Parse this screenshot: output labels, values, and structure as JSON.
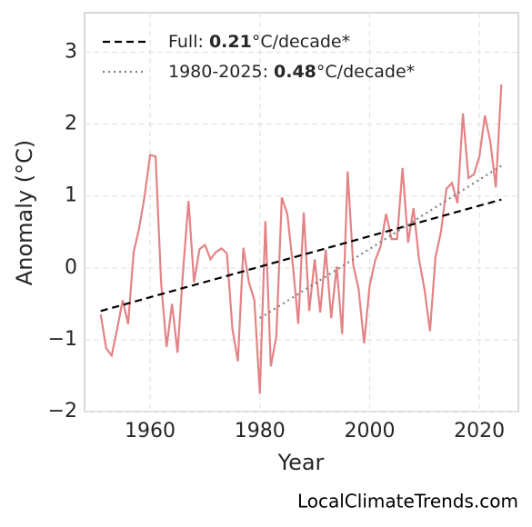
{
  "chart_data": {
    "type": "line",
    "xlabel": "Year",
    "ylabel": "Anomaly (°C)",
    "footer": "LocalClimateTrends.com",
    "xlim": [
      1948.06,
      2027.1
    ],
    "ylim": [
      -2,
      3.55
    ],
    "xticks": [
      1960,
      1980,
      2000,
      2020
    ],
    "yticks": [
      {
        "value": -2,
        "label": "−2"
      },
      {
        "value": -1,
        "label": "−1"
      },
      0,
      1,
      2,
      3
    ],
    "grid": true,
    "series": [
      {
        "color": "#e38386",
        "x": [
          1951,
          1952,
          1953,
          1954,
          1955,
          1956,
          1957,
          1958,
          1959,
          1960,
          1961,
          1962,
          1963,
          1964,
          1965,
          1966,
          1967,
          1968,
          1969,
          1970,
          1971,
          1972,
          1973,
          1974,
          1975,
          1976,
          1977,
          1978,
          1979,
          1980,
          1981,
          1982,
          1983,
          1984,
          1985,
          1986,
          1987,
          1988,
          1989,
          1990,
          1991,
          1992,
          1993,
          1994,
          1995,
          1996,
          1997,
          1998,
          1999,
          2000,
          2001,
          2002,
          2003,
          2004,
          2005,
          2006,
          2007,
          2008,
          2009,
          2010,
          2011,
          2012,
          2013,
          2014,
          2015,
          2016,
          2017,
          2018,
          2019,
          2020,
          2021,
          2022,
          2023,
          2024
        ],
        "values": [
          -0.65,
          -1.12,
          -1.22,
          -0.85,
          -0.45,
          -0.78,
          0.22,
          0.55,
          1.0,
          1.57,
          1.55,
          -0.2,
          -1.1,
          -0.5,
          -1.18,
          -0.05,
          0.93,
          -0.2,
          0.26,
          0.32,
          0.12,
          0.22,
          0.27,
          0.2,
          -0.85,
          -1.3,
          0.28,
          -0.2,
          -0.45,
          -1.75,
          0.65,
          -1.37,
          -0.95,
          0.98,
          0.75,
          0.05,
          -0.78,
          0.77,
          -0.6,
          0.12,
          -0.62,
          0.25,
          -0.7,
          0.02,
          -0.92,
          1.34,
          0.05,
          -0.3,
          -1.05,
          -0.25,
          0.1,
          0.3,
          0.75,
          0.4,
          0.4,
          1.39,
          0.35,
          0.83,
          0.12,
          -0.3,
          -0.88,
          0.15,
          0.5,
          1.1,
          1.18,
          0.9,
          2.15,
          1.25,
          1.3,
          1.55,
          2.12,
          1.75,
          1.12,
          2.55
        ]
      },
      {
        "color": "#000000",
        "style": "dashed",
        "x": [
          1951,
          2024
        ],
        "values": [
          -0.6,
          0.95
        ],
        "legend_label": {
          "prefix": "Full: ",
          "bold": "0.21",
          "suffix": "°C/decade*"
        }
      },
      {
        "color": "#808080",
        "style": "dotted",
        "x": [
          1980,
          2024
        ],
        "values": [
          -0.7,
          1.42
        ],
        "legend_label": {
          "prefix": "1980-2025: ",
          "bold": "0.48",
          "suffix": "°C/decade*"
        }
      }
    ]
  }
}
